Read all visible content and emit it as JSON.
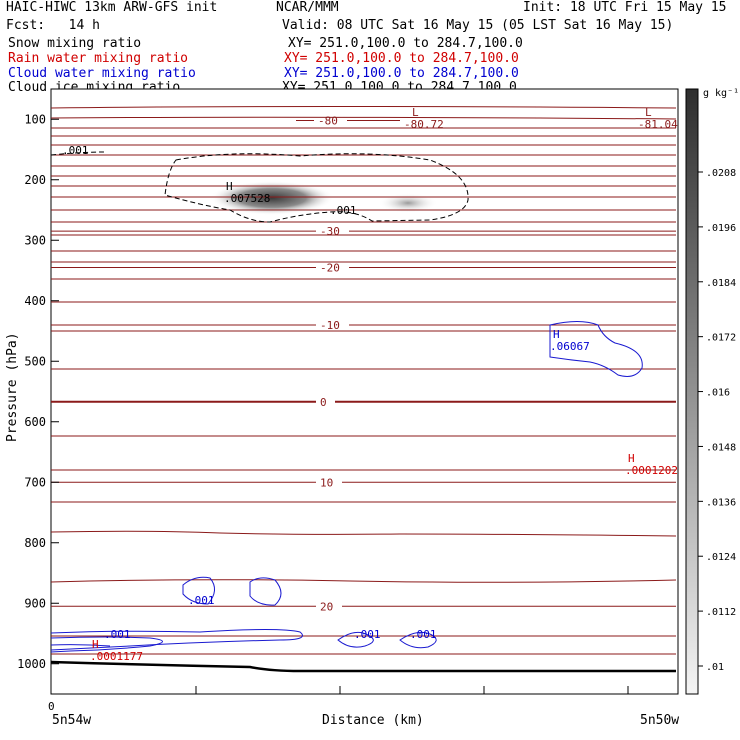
{
  "header": {
    "title": "HAIC-HIWC 13km ARW-GFS init",
    "org": "NCAR/MMM",
    "init": "Init: 18 UTC Fri 15 May 15",
    "fcst": "Fcst:   14 h",
    "valid": "Valid: 08 UTC Sat 16 May 15 (05 LST Sat 16 May 15)"
  },
  "fields": [
    {
      "name": "Snow mixing ratio",
      "xy": "XY= 251.0,100.0 to 284.7,100.0",
      "color": "#000000"
    },
    {
      "name": "Rain water mixing ratio",
      "xy": "XY= 251.0,100.0 to 284.7,100.0",
      "color": "#d00000"
    },
    {
      "name": "Cloud water mixing ratio",
      "xy": "XY= 251.0,100.0 to 284.7,100.0",
      "color": "#0000d0"
    },
    {
      "name": "Cloud ice mixing ratio",
      "xy": "XY= 251.0,100.0 to 284.7,100.0",
      "color": "#000000"
    }
  ],
  "colorbar": {
    "unit": "g kg⁻¹",
    "ticks": [
      ".0208",
      ".0196",
      ".0184",
      ".0172",
      ".016",
      ".0148",
      ".0136",
      ".0124",
      ".0112",
      ".01"
    ]
  },
  "chart_data": {
    "type": "cross-section",
    "xlabel": "Distance (km)",
    "ylabel": "Pressure (hPa)",
    "x_start_tick": "0",
    "x_left_label": "5n54w",
    "x_right_label": "5n50w",
    "yticks": [
      "100",
      "200",
      "300",
      "400",
      "500",
      "600",
      "700",
      "800",
      "900",
      "1000"
    ],
    "ylim": [
      50,
      1050
    ],
    "temperature_contours": [
      {
        "value": "-80",
        "p": 102
      },
      {
        "value": "-30",
        "p": 285
      },
      {
        "value": "-20",
        "p": 345
      },
      {
        "value": "-10",
        "p": 440
      },
      {
        "value": "0",
        "p": 567
      },
      {
        "value": "10",
        "p": 700
      },
      {
        "value": "20",
        "p": 905
      }
    ],
    "annotations": [
      {
        "kind": "L",
        "value": "-80.72",
        "color": "#8b1a1a"
      },
      {
        "kind": "L",
        "value": "-81.04",
        "color": "#8b1a1a"
      },
      {
        "kind": "H",
        "value": ".007528",
        "color": "#000000"
      },
      {
        "kind": "label",
        "value": ".001",
        "color": "#000000"
      },
      {
        "kind": "label",
        "value": ".001",
        "color": "#000000"
      },
      {
        "kind": "H",
        "value": ".06067",
        "color": "#0000d0"
      },
      {
        "kind": "H",
        "value": ".0001202",
        "color": "#d00000"
      },
      {
        "kind": "H",
        "value": ".0001177",
        "color": "#d00000"
      },
      {
        "kind": "label",
        "value": ".001",
        "color": "#0000d0"
      },
      {
        "kind": "label",
        "value": ".001",
        "color": "#0000d0"
      },
      {
        "kind": "label",
        "value": ".001",
        "color": "#0000d0"
      },
      {
        "kind": "label",
        "value": ".001",
        "color": "#0000d0"
      }
    ],
    "colors": {
      "temperature": "#8b1a1a",
      "cloud_water": "#1a1ad0",
      "rain": "#d00000",
      "snow": "#000000"
    }
  }
}
